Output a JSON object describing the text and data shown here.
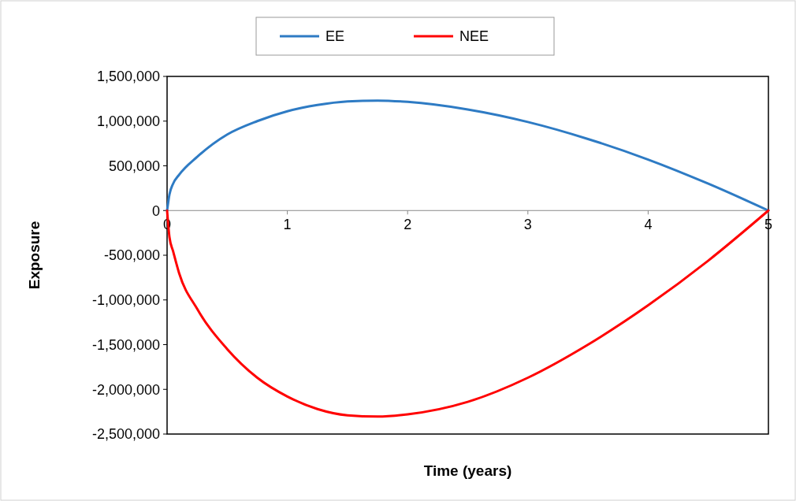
{
  "chart_data": {
    "type": "line",
    "xlabel": "Time (years)",
    "ylabel": "Exposure",
    "xlim": [
      0,
      5
    ],
    "xticks": [
      0,
      1,
      2,
      3,
      4,
      5
    ],
    "ylim": [
      -2500000,
      1500000
    ],
    "yticks": [
      {
        "value": 1500000,
        "label": "1,500,000"
      },
      {
        "value": 1000000,
        "label": "1,000,000"
      },
      {
        "value": 500000,
        "label": "500,000"
      },
      {
        "value": 0,
        "label": "0"
      },
      {
        "value": -500000,
        "label": "-500,000"
      },
      {
        "value": -1000000,
        "label": "-1,000,000"
      },
      {
        "value": -1500000,
        "label": "-1,500,000"
      },
      {
        "value": -2000000,
        "label": "-2,000,000"
      },
      {
        "value": -2500000,
        "label": "-2,500,000"
      }
    ],
    "grid": false,
    "legend": "top",
    "marker": "none",
    "line_style": "solid",
    "series": [
      {
        "name": "EE",
        "color": "#2e7bc4",
        "x": [
          0,
          0.02,
          0.05,
          0.1,
          0.25,
          0.5,
          0.75,
          1,
          1.25,
          1.5,
          1.75,
          2,
          2.5,
          3,
          3.5,
          4,
          4.5,
          5
        ],
        "values": [
          0,
          180000,
          300000,
          400000,
          600000,
          850000,
          1000000,
          1110000,
          1180000,
          1220000,
          1230000,
          1215000,
          1130000,
          990000,
          800000,
          570000,
          300000,
          0
        ]
      },
      {
        "name": "NEE",
        "color": "#ff0000",
        "x": [
          0,
          0.02,
          0.05,
          0.1,
          0.25,
          0.5,
          0.75,
          1,
          1.25,
          1.5,
          1.75,
          2,
          2.5,
          3,
          3.5,
          4,
          4.5,
          5
        ],
        "values": [
          0,
          -300000,
          -455000,
          -700000,
          -1100000,
          -1550000,
          -1870000,
          -2080000,
          -2220000,
          -2290000,
          -2305000,
          -2280000,
          -2140000,
          -1870000,
          -1500000,
          -1060000,
          -560000,
          0
        ]
      }
    ]
  }
}
